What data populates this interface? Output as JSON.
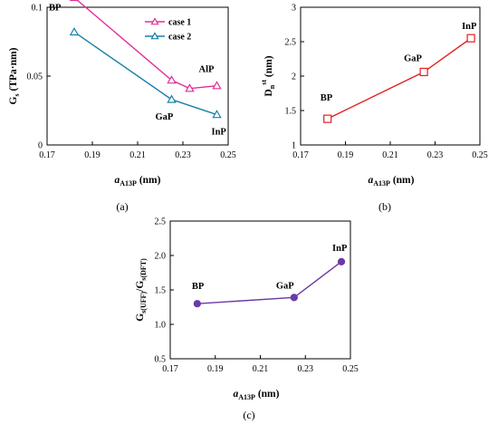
{
  "chart_data": [
    {
      "id": "a",
      "type": "line",
      "panel_label": "(a)",
      "xlabel": {
        "italic": "a",
        "sub": "A13P",
        "rest": " (nm)"
      },
      "ylabel": {
        "main": "G",
        "sub": "s",
        "rest": " (TPa·nm)"
      },
      "xlim": [
        0.17,
        0.25
      ],
      "ylim": [
        0,
        0.1
      ],
      "xticks": [
        "0.17",
        "0.19",
        "0.21",
        "0.23",
        "0.25"
      ],
      "yticks": [
        "0",
        "0.05",
        "0.1"
      ],
      "marker": "triangle",
      "legend": "top-right",
      "series": [
        {
          "name": "case 1",
          "color": "#e0309a",
          "x": [
            0.182,
            0.225,
            0.233,
            0.245
          ],
          "y": [
            0.107,
            0.047,
            0.041,
            0.043
          ]
        },
        {
          "name": "case 2",
          "color": "#1a80a8",
          "x": [
            0.182,
            0.225,
            0.245
          ],
          "y": [
            0.082,
            0.033,
            0.022
          ]
        }
      ],
      "annotations": [
        {
          "text": "BP",
          "x": 0.182,
          "y": 0.082
        },
        {
          "text": "AlP",
          "x": 0.233,
          "y": 0.041
        },
        {
          "text": "GaP",
          "x": 0.225,
          "y": 0.033
        },
        {
          "text": "InP",
          "x": 0.245,
          "y": 0.022
        }
      ]
    },
    {
      "id": "b",
      "type": "line",
      "panel_label": "(b)",
      "xlabel": {
        "italic": "a",
        "sub": "A13P",
        "rest": " (nm)"
      },
      "ylabel": {
        "main": "D",
        "sub": "n",
        "sup": "st",
        "rest": " (nm)"
      },
      "xlim": [
        0.17,
        0.25
      ],
      "ylim": [
        1,
        3
      ],
      "xticks": [
        "0.17",
        "0.19",
        "0.21",
        "0.23",
        "0.25"
      ],
      "yticks": [
        "1",
        "1.5",
        "2",
        "2.5",
        "3"
      ],
      "marker": "square",
      "series": [
        {
          "name": "",
          "color": "#e02020",
          "x": [
            0.182,
            0.225,
            0.246
          ],
          "y": [
            1.38,
            2.06,
            2.55
          ]
        }
      ],
      "annotations": [
        {
          "text": "BP",
          "x": 0.182,
          "y": 1.38
        },
        {
          "text": "GaP",
          "x": 0.225,
          "y": 2.06
        },
        {
          "text": "InP",
          "x": 0.246,
          "y": 2.55
        }
      ]
    },
    {
      "id": "c",
      "type": "line",
      "panel_label": "(c)",
      "xlabel": {
        "italic": "a",
        "sub": "A13P",
        "rest": " (nm)"
      },
      "ylabel": {
        "main": "G",
        "sub": "s(UFF)",
        "mid": "/G",
        "sub2": "s(DFT)"
      },
      "xlim": [
        0.17,
        0.25
      ],
      "ylim": [
        0.5,
        2.5
      ],
      "xticks": [
        "0.17",
        "0.19",
        "0.21",
        "0.23",
        "0.25"
      ],
      "yticks": [
        "0.5",
        "1.0",
        "1.5",
        "2.0",
        "2.5"
      ],
      "marker": "circle",
      "series": [
        {
          "name": "",
          "color": "#6a3aa8",
          "x": [
            0.182,
            0.225,
            0.246
          ],
          "y": [
            1.3,
            1.39,
            1.91
          ]
        }
      ],
      "annotations": [
        {
          "text": "BP",
          "x": 0.182,
          "y": 1.3
        },
        {
          "text": "GaP",
          "x": 0.225,
          "y": 1.39
        },
        {
          "text": "InP",
          "x": 0.246,
          "y": 1.91
        }
      ]
    }
  ]
}
